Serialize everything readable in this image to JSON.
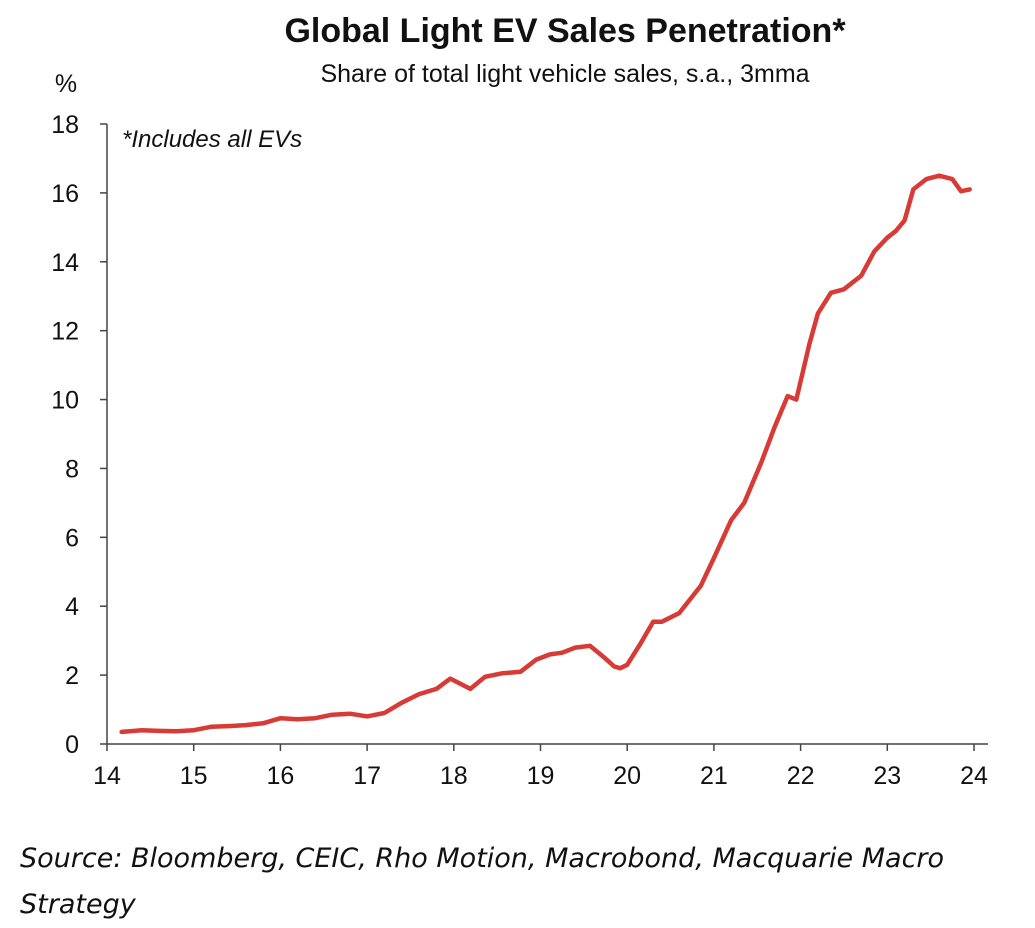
{
  "chart_data": {
    "type": "line",
    "title": "Global Light EV Sales Penetration*",
    "subtitle": "Share of total light vehicle sales, s.a., 3mma",
    "y_label": "%",
    "annotation": "*Includes all EVs",
    "source": "Source: Bloomberg, CEIC, Rho Motion, Macrobond, Macquarie Macro Strategy",
    "xlim": [
      14,
      24
    ],
    "xticks": [
      14,
      15,
      16,
      17,
      18,
      19,
      20,
      21,
      22,
      23,
      24
    ],
    "ylim": [
      0,
      18
    ],
    "yticks": [
      0,
      2,
      4,
      6,
      8,
      10,
      12,
      14,
      16,
      18
    ],
    "grid": false,
    "series": [
      {
        "name": "Light EV share",
        "color": "#d83b35",
        "x": [
          14.17,
          14.4,
          14.6,
          14.8,
          15.0,
          15.2,
          15.4,
          15.6,
          15.8,
          16.0,
          16.2,
          16.4,
          16.6,
          16.8,
          17.0,
          17.2,
          17.4,
          17.6,
          17.8,
          17.96,
          18.19,
          18.36,
          18.55,
          18.77,
          18.95,
          19.11,
          19.25,
          19.4,
          19.57,
          19.74,
          19.85,
          19.92,
          20.0,
          20.15,
          20.3,
          20.4,
          20.6,
          20.85,
          21.0,
          21.2,
          21.35,
          21.55,
          21.7,
          21.85,
          21.95,
          22.1,
          22.2,
          22.35,
          22.5,
          22.7,
          22.85,
          23.0,
          23.1,
          23.2,
          23.3,
          23.45,
          23.6,
          23.75,
          23.85,
          23.95
        ],
        "values": [
          0.35,
          0.4,
          0.38,
          0.37,
          0.4,
          0.5,
          0.52,
          0.55,
          0.6,
          0.75,
          0.72,
          0.75,
          0.85,
          0.88,
          0.8,
          0.9,
          1.2,
          1.45,
          1.6,
          1.9,
          1.6,
          1.95,
          2.05,
          2.1,
          2.45,
          2.6,
          2.65,
          2.8,
          2.85,
          2.5,
          2.25,
          2.2,
          2.3,
          2.9,
          3.55,
          3.55,
          3.8,
          4.6,
          5.4,
          6.5,
          7.0,
          8.2,
          9.2,
          10.1,
          10.0,
          11.6,
          12.5,
          13.1,
          13.2,
          13.6,
          14.3,
          14.7,
          14.9,
          15.2,
          16.1,
          16.4,
          16.5,
          16.4,
          16.05,
          16.1
        ]
      }
    ]
  }
}
